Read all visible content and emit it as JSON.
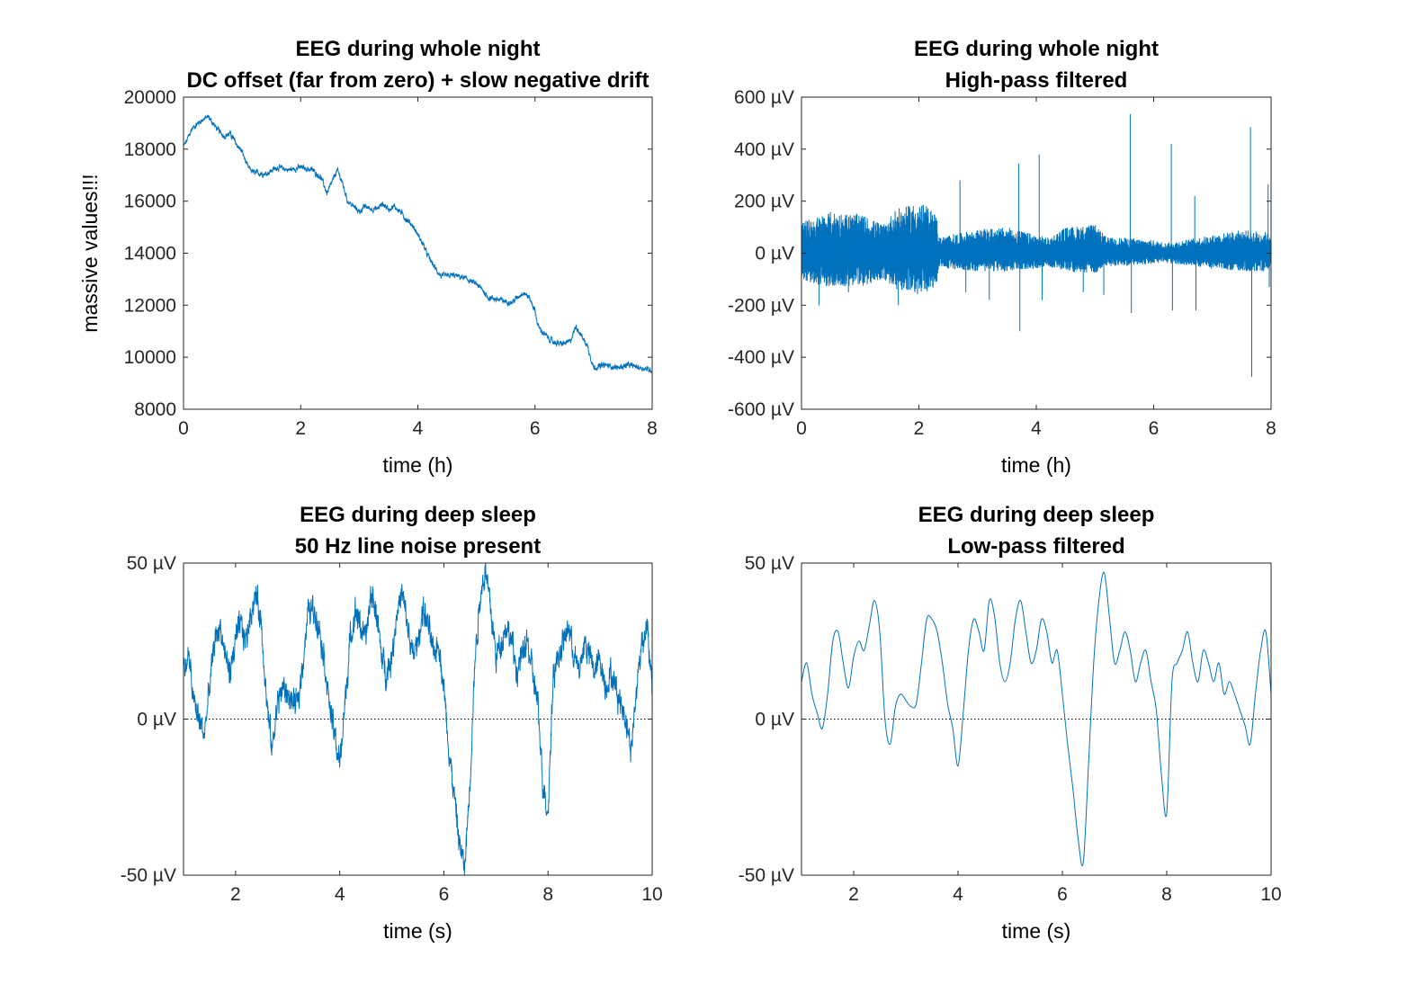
{
  "colors": {
    "trace": "#0072bd",
    "axis": "#262626",
    "zero_line": "#000000"
  },
  "chart_data": [
    {
      "type": "line",
      "title": [
        "EEG during whole night",
        "DC offset (far from zero) + slow negative drift"
      ],
      "xlabel": "time (h)",
      "ylabel": "massive values!!!",
      "xlim": [
        0,
        8
      ],
      "ylim": [
        8000,
        20000
      ],
      "xticks": [
        0,
        2,
        4,
        6,
        8
      ],
      "xtick_labels": [
        "0",
        "2",
        "4",
        "6",
        "8"
      ],
      "yticks": [
        8000,
        10000,
        12000,
        14000,
        16000,
        18000,
        20000
      ],
      "ytick_labels": [
        "8000",
        "10000",
        "12000",
        "14000",
        "16000",
        "18000",
        "20000"
      ],
      "zero_line": false,
      "trace_style": "noisy",
      "series": [
        {
          "x": [
            0,
            0.05,
            0.15,
            0.3,
            0.42,
            0.5,
            0.6,
            0.7,
            0.8,
            0.9,
            1.0,
            1.1,
            1.2,
            1.4,
            1.6,
            1.8,
            2.0,
            2.2,
            2.35,
            2.45,
            2.55,
            2.62,
            2.7,
            2.8,
            2.9,
            3.0,
            3.1,
            3.2,
            3.3,
            3.4,
            3.5,
            3.6,
            3.7,
            3.8,
            3.9,
            4.0,
            4.1,
            4.15,
            4.2,
            4.3,
            4.4,
            4.6,
            4.8,
            5.0,
            5.1,
            5.2,
            5.3,
            5.5,
            5.6,
            5.7,
            5.8,
            5.9,
            6.0,
            6.05,
            6.15,
            6.3,
            6.45,
            6.6,
            6.7,
            6.8,
            6.9,
            7.0,
            7.2,
            7.4,
            7.6,
            7.8,
            8.0
          ],
          "y": [
            18100,
            18300,
            18800,
            19100,
            19250,
            19000,
            18700,
            18500,
            18600,
            18200,
            17900,
            17300,
            17100,
            17050,
            17300,
            17200,
            17300,
            17200,
            16900,
            16300,
            16800,
            17200,
            16800,
            16000,
            15800,
            15600,
            15800,
            15700,
            15700,
            15900,
            15700,
            15800,
            15600,
            15300,
            15100,
            14700,
            14300,
            14000,
            13800,
            13400,
            13100,
            13150,
            13050,
            12800,
            12600,
            12300,
            12250,
            12150,
            12100,
            12300,
            12500,
            12300,
            11800,
            11200,
            10900,
            10600,
            10500,
            10600,
            11200,
            10800,
            10400,
            9600,
            9700,
            9600,
            9700,
            9600,
            9500
          ]
        }
      ]
    },
    {
      "type": "line",
      "title": [
        "EEG during whole night",
        "High-pass filtered"
      ],
      "xlabel": "time (h)",
      "ylabel": "",
      "xlim": [
        0,
        8
      ],
      "ylim": [
        -600,
        600
      ],
      "xticks": [
        0,
        2,
        4,
        6,
        8
      ],
      "xtick_labels": [
        "0",
        "2",
        "4",
        "6",
        "8"
      ],
      "yticks": [
        -600,
        -400,
        -200,
        0,
        200,
        400,
        600
      ],
      "ytick_labels": [
        "-600 µV",
        "-400 µV",
        "-200 µV",
        "0 µV",
        "200 µV",
        "400 µV",
        "600 µV"
      ],
      "zero_line": true,
      "trace_style": "dense_band",
      "envelope": {
        "x": [
          0,
          0.5,
          1.0,
          1.4,
          1.6,
          1.8,
          2.0,
          2.2,
          2.3,
          2.35,
          2.5,
          3.0,
          3.5,
          4.0,
          4.2,
          4.5,
          5.0,
          5.2,
          5.5,
          6.0,
          6.2,
          6.5,
          7.0,
          7.5,
          8.0
        ],
        "upper": [
          120,
          160,
          150,
          110,
          170,
          180,
          200,
          170,
          150,
          60,
          70,
          90,
          100,
          70,
          60,
          100,
          110,
          60,
          60,
          50,
          40,
          50,
          70,
          90,
          80
        ],
        "lower": [
          -110,
          -130,
          -130,
          -100,
          -140,
          -150,
          -160,
          -150,
          -130,
          -50,
          -60,
          -70,
          -70,
          -60,
          -50,
          -70,
          -80,
          -50,
          -50,
          -40,
          -40,
          -45,
          -60,
          -70,
          -70
        ]
      },
      "spikes": [
        {
          "x": 0.3,
          "y": -200
        },
        {
          "x": 0.8,
          "y": -150
        },
        {
          "x": 1.6,
          "y": -120
        },
        {
          "x": 1.65,
          "y": -200
        },
        {
          "x": 2.7,
          "y": 280
        },
        {
          "x": 2.8,
          "y": -150
        },
        {
          "x": 3.2,
          "y": -180
        },
        {
          "x": 3.7,
          "y": 345
        },
        {
          "x": 3.72,
          "y": -300
        },
        {
          "x": 4.05,
          "y": 380
        },
        {
          "x": 4.1,
          "y": -180
        },
        {
          "x": 4.8,
          "y": -150
        },
        {
          "x": 5.15,
          "y": -160
        },
        {
          "x": 5.6,
          "y": 535
        },
        {
          "x": 5.62,
          "y": -230
        },
        {
          "x": 6.3,
          "y": 420
        },
        {
          "x": 6.32,
          "y": -220
        },
        {
          "x": 6.7,
          "y": 220
        },
        {
          "x": 6.72,
          "y": -220
        },
        {
          "x": 7.65,
          "y": 485
        },
        {
          "x": 7.67,
          "y": -475
        },
        {
          "x": 7.95,
          "y": 265
        },
        {
          "x": 7.97,
          "y": -130
        }
      ]
    },
    {
      "type": "line",
      "title": [
        "EEG during deep sleep",
        "50 Hz line noise present"
      ],
      "xlabel": "time (s)",
      "ylabel": "",
      "xlim": [
        1,
        10
      ],
      "ylim": [
        -50,
        50
      ],
      "xticks": [
        2,
        4,
        6,
        8,
        10
      ],
      "xtick_labels": [
        "2",
        "4",
        "6",
        "8",
        "10"
      ],
      "yticks": [
        -50,
        0,
        50
      ],
      "ytick_labels": [
        "-50 µV",
        "0 µV",
        "50 µV"
      ],
      "zero_line": true,
      "trace_style": "noisy",
      "series": [
        {
          "x": [
            1.0,
            1.1,
            1.2,
            1.3,
            1.4,
            1.5,
            1.6,
            1.7,
            1.8,
            1.9,
            2.0,
            2.1,
            2.2,
            2.3,
            2.4,
            2.5,
            2.6,
            2.7,
            2.8,
            2.9,
            3.0,
            3.1,
            3.2,
            3.3,
            3.4,
            3.5,
            3.6,
            3.7,
            3.8,
            3.9,
            4.0,
            4.1,
            4.2,
            4.3,
            4.4,
            4.5,
            4.6,
            4.7,
            4.8,
            4.9,
            5.0,
            5.1,
            5.2,
            5.3,
            5.4,
            5.5,
            5.6,
            5.7,
            5.8,
            5.9,
            6.0,
            6.1,
            6.2,
            6.3,
            6.4,
            6.5,
            6.6,
            6.7,
            6.8,
            6.9,
            7.0,
            7.1,
            7.2,
            7.3,
            7.4,
            7.5,
            7.6,
            7.7,
            7.8,
            7.9,
            8.0,
            8.1,
            8.2,
            8.3,
            8.4,
            8.5,
            8.6,
            8.7,
            8.8,
            8.9,
            9.0,
            9.1,
            9.2,
            9.3,
            9.4,
            9.5,
            9.6,
            9.7,
            9.8,
            9.9,
            10.0
          ],
          "y": [
            15,
            20,
            5,
            0,
            -5,
            10,
            25,
            30,
            20,
            15,
            25,
            30,
            25,
            35,
            40,
            30,
            5,
            -10,
            5,
            10,
            8,
            5,
            5,
            20,
            35,
            35,
            30,
            20,
            5,
            -5,
            -15,
            5,
            25,
            35,
            30,
            25,
            40,
            35,
            20,
            15,
            20,
            35,
            40,
            30,
            20,
            25,
            35,
            30,
            20,
            25,
            10,
            -10,
            -25,
            -40,
            -48,
            -20,
            20,
            40,
            48,
            35,
            20,
            25,
            30,
            25,
            15,
            20,
            25,
            15,
            5,
            -20,
            -30,
            15,
            20,
            25,
            30,
            20,
            15,
            25,
            20,
            15,
            20,
            10,
            15,
            10,
            5,
            0,
            -10,
            10,
            25,
            30,
            8
          ]
        }
      ]
    },
    {
      "type": "line",
      "title": [
        "EEG during deep sleep",
        "Low-pass filtered"
      ],
      "xlabel": "time (s)",
      "ylabel": "",
      "xlim": [
        1,
        10
      ],
      "ylim": [
        -50,
        50
      ],
      "xticks": [
        2,
        4,
        6,
        8,
        10
      ],
      "xtick_labels": [
        "2",
        "4",
        "6",
        "8",
        "10"
      ],
      "yticks": [
        -50,
        0,
        50
      ],
      "ytick_labels": [
        "-50 µV",
        "0 µV",
        "50 µV"
      ],
      "zero_line": true,
      "trace_style": "smooth",
      "series": [
        {
          "x": [
            1.0,
            1.1,
            1.2,
            1.3,
            1.4,
            1.5,
            1.6,
            1.7,
            1.8,
            1.9,
            2.0,
            2.1,
            2.2,
            2.3,
            2.4,
            2.5,
            2.6,
            2.7,
            2.8,
            2.9,
            3.0,
            3.1,
            3.2,
            3.3,
            3.4,
            3.5,
            3.6,
            3.7,
            3.8,
            3.9,
            4.0,
            4.1,
            4.2,
            4.3,
            4.4,
            4.5,
            4.6,
            4.7,
            4.8,
            4.9,
            5.0,
            5.1,
            5.2,
            5.3,
            5.4,
            5.5,
            5.6,
            5.7,
            5.8,
            5.9,
            6.0,
            6.1,
            6.2,
            6.3,
            6.4,
            6.5,
            6.6,
            6.7,
            6.8,
            6.9,
            7.0,
            7.1,
            7.2,
            7.3,
            7.4,
            7.5,
            7.6,
            7.7,
            7.8,
            7.9,
            8.0,
            8.1,
            8.2,
            8.3,
            8.4,
            8.5,
            8.6,
            8.7,
            8.8,
            8.9,
            9.0,
            9.1,
            9.2,
            9.3,
            9.4,
            9.5,
            9.6,
            9.7,
            9.8,
            9.9,
            10.0
          ],
          "y": [
            12,
            18,
            8,
            2,
            -3,
            8,
            25,
            28,
            18,
            10,
            20,
            25,
            22,
            30,
            38,
            28,
            0,
            -8,
            4,
            8,
            6,
            4,
            5,
            18,
            32,
            32,
            28,
            18,
            5,
            -3,
            -15,
            2,
            22,
            32,
            28,
            22,
            38,
            33,
            18,
            12,
            18,
            32,
            38,
            28,
            18,
            22,
            32,
            28,
            18,
            22,
            8,
            -8,
            -22,
            -38,
            -46,
            -15,
            18,
            38,
            47,
            33,
            18,
            22,
            28,
            22,
            12,
            18,
            22,
            12,
            3,
            -18,
            -30,
            12,
            18,
            22,
            28,
            18,
            12,
            22,
            18,
            12,
            18,
            8,
            12,
            8,
            3,
            -2,
            -8,
            8,
            22,
            28,
            8
          ]
        }
      ]
    }
  ]
}
